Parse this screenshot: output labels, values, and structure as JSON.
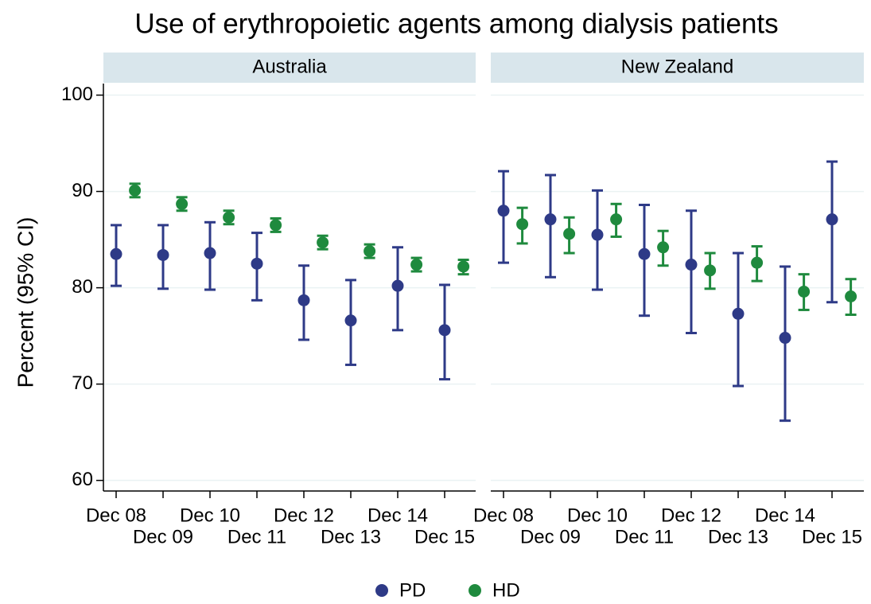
{
  "title": "Use of erythropoietic agents among dialysis patients",
  "chart_data": [
    {
      "type": "errorbar",
      "title": "Australia",
      "y_label": "Percent (95% CI)",
      "categories": [
        "Dec 08",
        "Dec 09",
        "Dec 10",
        "Dec 11",
        "Dec 12",
        "Dec 13",
        "Dec 14",
        "Dec 15"
      ],
      "ylim": [
        58.9,
        101.2
      ],
      "yticks": [
        60,
        70,
        80,
        90,
        100
      ],
      "grid": true,
      "legend": "bottom",
      "series": [
        {
          "name": "PD",
          "color": "#2e3a87",
          "values": [
            83.5,
            83.4,
            83.6,
            82.5,
            78.7,
            76.6,
            80.2,
            75.6
          ],
          "lower": [
            80.2,
            79.9,
            79.8,
            78.7,
            74.6,
            72.0,
            75.6,
            70.5
          ],
          "upper": [
            86.5,
            86.5,
            86.8,
            85.7,
            82.3,
            80.8,
            84.2,
            80.3
          ]
        },
        {
          "name": "HD",
          "color": "#1f8a3e",
          "values": [
            90.1,
            88.7,
            87.3,
            86.5,
            84.7,
            83.8,
            82.4,
            82.2
          ],
          "lower": [
            89.4,
            88.0,
            86.6,
            85.8,
            84.0,
            83.1,
            81.7,
            81.4
          ],
          "upper": [
            90.8,
            89.4,
            88.0,
            87.2,
            85.4,
            84.5,
            83.1,
            82.9
          ]
        }
      ]
    },
    {
      "type": "errorbar",
      "title": "New Zealand",
      "categories": [
        "Dec 08",
        "Dec 09",
        "Dec 10",
        "Dec 11",
        "Dec 12",
        "Dec 13",
        "Dec 14",
        "Dec 15"
      ],
      "ylim": [
        58.9,
        101.2
      ],
      "yticks": [
        60,
        70,
        80,
        90,
        100
      ],
      "grid": true,
      "series": [
        {
          "name": "PD",
          "color": "#2e3a87",
          "values": [
            88.0,
            87.1,
            85.5,
            83.5,
            82.4,
            77.3,
            74.8,
            87.1
          ],
          "lower": [
            82.6,
            81.1,
            79.8,
            77.1,
            75.3,
            69.8,
            66.2,
            78.5
          ],
          "upper": [
            92.1,
            91.7,
            90.1,
            88.6,
            88.0,
            83.6,
            82.2,
            93.1
          ]
        },
        {
          "name": "HD",
          "color": "#1f8a3e",
          "values": [
            86.6,
            85.6,
            87.1,
            84.2,
            81.8,
            82.6,
            79.6,
            79.1
          ],
          "lower": [
            84.6,
            83.6,
            85.3,
            82.3,
            79.9,
            80.7,
            77.7,
            77.2
          ],
          "upper": [
            88.3,
            87.3,
            88.7,
            85.9,
            83.6,
            84.3,
            81.4,
            80.9
          ]
        }
      ]
    }
  ]
}
